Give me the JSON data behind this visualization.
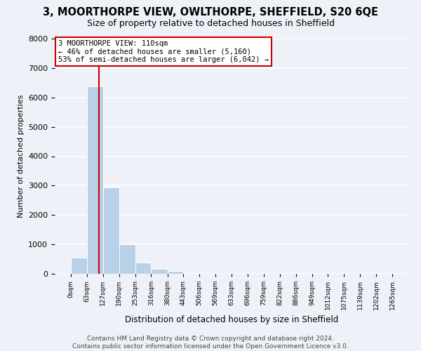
{
  "title": "3, MOORTHORPE VIEW, OWLTHORPE, SHEFFIELD, S20 6QE",
  "subtitle": "Size of property relative to detached houses in Sheffield",
  "xlabel": "Distribution of detached houses by size in Sheffield",
  "ylabel": "Number of detached properties",
  "bar_color": "#b8d0e8",
  "bin_edges": [
    0,
    63,
    127,
    190,
    253,
    316,
    380,
    443,
    506,
    569,
    633,
    696,
    759,
    822,
    886,
    949,
    1012,
    1075,
    1139,
    1202,
    1265
  ],
  "bar_heights": [
    550,
    6380,
    2930,
    1000,
    380,
    170,
    85,
    0,
    0,
    0,
    0,
    0,
    0,
    0,
    0,
    0,
    0,
    0,
    0,
    0
  ],
  "tick_labels": [
    "0sqm",
    "63sqm",
    "127sqm",
    "190sqm",
    "253sqm",
    "316sqm",
    "380sqm",
    "443sqm",
    "506sqm",
    "569sqm",
    "633sqm",
    "696sqm",
    "759sqm",
    "822sqm",
    "886sqm",
    "949sqm",
    "1012sqm",
    "1075sqm",
    "1139sqm",
    "1202sqm",
    "1265sqm"
  ],
  "ylim": [
    0,
    8000
  ],
  "yticks": [
    0,
    1000,
    2000,
    3000,
    4000,
    5000,
    6000,
    7000,
    8000
  ],
  "property_line_x": 110,
  "annotation_text": "3 MOORTHORPE VIEW: 110sqm\n← 46% of detached houses are smaller (5,160)\n53% of semi-detached houses are larger (6,042) →",
  "annotation_box_color": "#ffffff",
  "annotation_border_color": "#cc0000",
  "vline_color": "#cc0000",
  "footer_line1": "Contains HM Land Registry data © Crown copyright and database right 2024.",
  "footer_line2": "Contains public sector information licensed under the Open Government Licence v3.0.",
  "background_color": "#eef2f8",
  "plot_bg_color": "#eef2f8",
  "grid_color": "#ffffff",
  "title_fontsize": 10.5,
  "subtitle_fontsize": 9,
  "footer_fontsize": 6.5,
  "ylabel_fontsize": 8,
  "xlabel_fontsize": 8.5
}
